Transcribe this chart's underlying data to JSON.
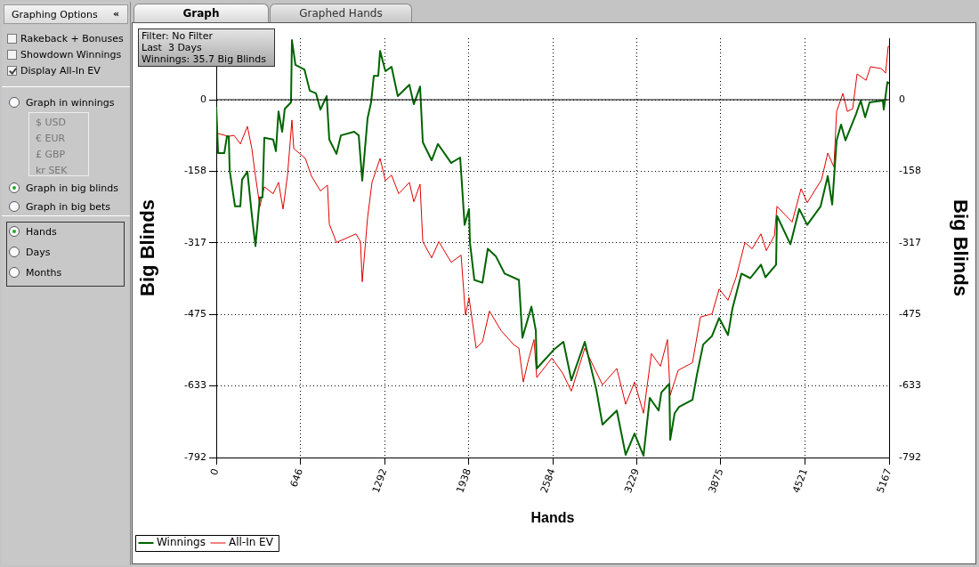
{
  "chart_data": {
    "type": "line",
    "xlabel": "Hands",
    "ylabel": "Big Blinds",
    "y2label": "Big Blinds",
    "annotations": [
      "Filter: No Filter",
      "Last  3 Days",
      "Winnings: 35.7 Big Blinds",
      "Graphing Options",
      "«",
      "Rakeback + Bonuses",
      "Showdown Winnings",
      "Display All-In EV",
      "Graph in winnings",
      "$ USD",
      "€ EUR",
      "£ GBP",
      "kr SEK",
      "Graph in big blinds",
      "Graph in big bets",
      "Hands",
      "Days",
      "Months",
      "Graph",
      "Graphed Hands"
    ],
    "xlim": [
      0,
      5167
    ],
    "xticks": [
      0,
      646,
      1292,
      1938,
      2584,
      3229,
      3875,
      4521,
      5167
    ],
    "ylim": [
      -792,
      136
    ],
    "yticks": [
      0,
      -158,
      -317,
      -475,
      -633,
      -792
    ],
    "y2lim": [
      -792,
      136
    ],
    "y2ticks": [
      0,
      -158,
      -317,
      -475,
      -633,
      -792
    ],
    "grid": true,
    "legend": "bottom left",
    "marker": "none",
    "line_style": "solid",
    "ref_lines": [
      {
        "axis": "y",
        "value": 0,
        "color": "#000000"
      }
    ],
    "series": [
      {
        "name": "Winnings",
        "color": "#006400",
        "x": [
          0,
          14,
          62,
          82,
          96,
          103,
          144,
          185,
          198,
          239,
          273,
          301,
          335,
          355,
          369,
          437,
          458,
          478,
          506,
          526,
          574,
          581,
          608,
          677,
          718,
          766,
          800,
          848,
          868,
          923,
          957,
          1059,
          1094,
          1121,
          1162,
          1189,
          1210,
          1244,
          1258,
          1299,
          1346,
          1394,
          1483,
          1517,
          1565,
          1586,
          1654,
          1702,
          1804,
          1873,
          1907,
          1941,
          1948,
          1982,
          2044,
          2085,
          2146,
          2215,
          2324,
          2351,
          2420,
          2454,
          2461,
          2597,
          2666,
          2727,
          2830,
          2918,
          2966,
          3076,
          3144,
          3212,
          3281,
          3329,
          3397,
          3418,
          3479,
          3486,
          3520,
          3554,
          3657,
          3691,
          3739,
          3807,
          3862,
          3930,
          3964,
          4033,
          4101,
          4183,
          4217,
          4299,
          4306,
          4409,
          4477,
          4538,
          4641,
          4696,
          4730,
          4764,
          4798,
          4832,
          4914,
          4949,
          4983,
          5017,
          5119,
          5126,
          5154,
          5167
        ],
        "values": [
          -16,
          -118,
          -118,
          -81,
          -81,
          -157,
          -236,
          -236,
          -177,
          -159,
          -255,
          -324,
          -216,
          -216,
          -84,
          -88,
          -114,
          -26,
          -71,
          -20,
          -6,
          132,
          77,
          67,
          20,
          14,
          -22,
          8,
          -88,
          -120,
          -79,
          -71,
          -79,
          -179,
          -41,
          -6,
          53,
          53,
          108,
          63,
          73,
          8,
          33,
          -10,
          29,
          -94,
          -134,
          -98,
          -140,
          -128,
          -277,
          -242,
          -316,
          -399,
          -405,
          -330,
          -346,
          -385,
          -399,
          -527,
          -458,
          -511,
          -595,
          -552,
          -536,
          -621,
          -536,
          -641,
          -719,
          -688,
          -786,
          -739,
          -788,
          -660,
          -688,
          -648,
          -629,
          -753,
          -694,
          -680,
          -664,
          -609,
          -542,
          -523,
          -483,
          -521,
          -462,
          -385,
          -395,
          -365,
          -393,
          -365,
          -257,
          -320,
          -242,
          -277,
          -236,
          -169,
          -232,
          -90,
          -55,
          -90,
          -31,
          -2,
          -39,
          -6,
          -2,
          -22,
          39,
          36
        ]
      },
      {
        "name": "All-In EV",
        "color": "#e00000",
        "x": [
          14,
          96,
          137,
          185,
          239,
          273,
          301,
          335,
          369,
          437,
          478,
          513,
          547,
          581,
          595,
          684,
          731,
          800,
          854,
          868,
          923,
          1073,
          1107,
          1121,
          1162,
          1196,
          1258,
          1299,
          1346,
          1401,
          1483,
          1517,
          1565,
          1586,
          1654,
          1709,
          1804,
          1880,
          1914,
          1941,
          1996,
          2044,
          2098,
          2187,
          2283,
          2324,
          2358,
          2392,
          2440,
          2461,
          2577,
          2659,
          2727,
          2830,
          2898,
          2966,
          3076,
          3144,
          3212,
          3281,
          3342,
          3411,
          3465,
          3486,
          3547,
          3657,
          3718,
          3807,
          3862,
          3930,
          3992,
          4060,
          4115,
          4183,
          4224,
          4286,
          4306,
          4422,
          4491,
          4538,
          4648,
          4696,
          4743,
          4764,
          4812,
          4846,
          4887,
          4921,
          4990,
          5024,
          5106,
          5140,
          5160,
          5167
        ],
        "values": [
          -75,
          -81,
          -79,
          -98,
          -59,
          -108,
          -169,
          -236,
          -193,
          -208,
          -183,
          -242,
          -167,
          -45,
          -108,
          -130,
          -169,
          -202,
          -189,
          -275,
          -316,
          -297,
          -314,
          -403,
          -261,
          -183,
          -130,
          -179,
          -167,
          -208,
          -183,
          -226,
          -187,
          -314,
          -350,
          -314,
          -360,
          -344,
          -477,
          -438,
          -550,
          -536,
          -468,
          -511,
          -542,
          -550,
          -625,
          -582,
          -531,
          -615,
          -572,
          -605,
          -645,
          -550,
          -591,
          -631,
          -595,
          -674,
          -625,
          -694,
          -562,
          -590,
          -531,
          -654,
          -599,
          -582,
          -481,
          -474,
          -419,
          -444,
          -393,
          -316,
          -330,
          -297,
          -334,
          -301,
          -236,
          -271,
          -197,
          -228,
          -177,
          -118,
          -149,
          -26,
          14,
          -26,
          -20,
          57,
          43,
          73,
          69,
          59,
          118,
          118
        ]
      }
    ]
  }
}
